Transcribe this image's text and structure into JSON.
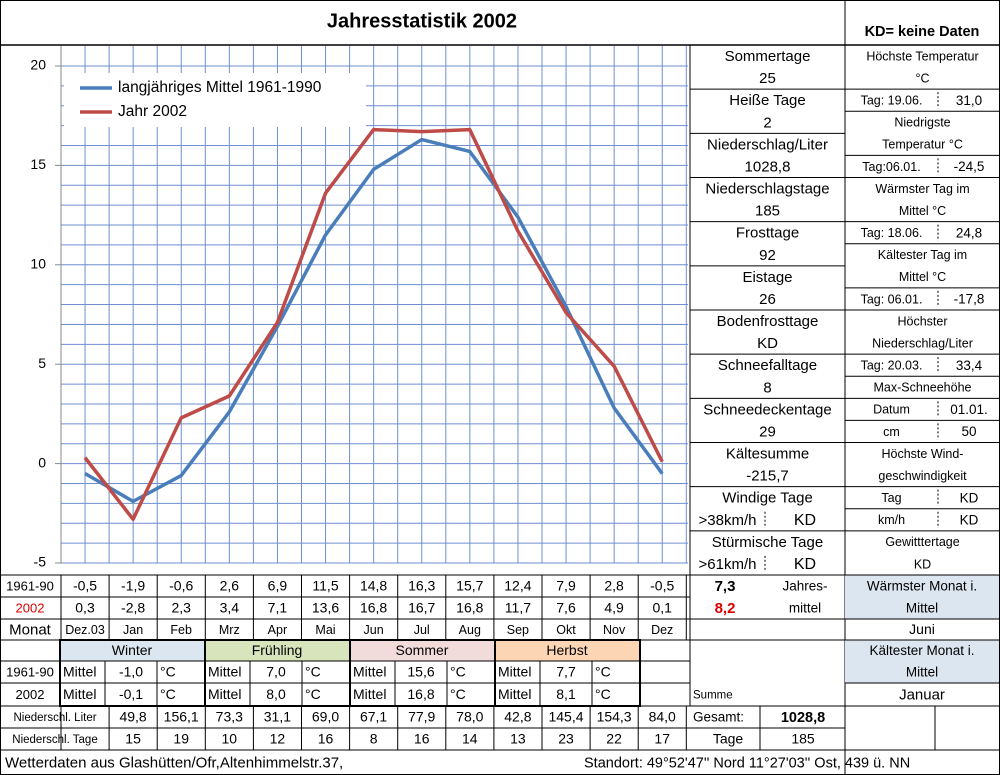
{
  "header": {
    "title": "Jahresstatistik 2002",
    "note": "KD= keine Daten"
  },
  "chart_data": {
    "type": "line",
    "categories": [
      "Dez.03",
      "Jan",
      "Feb",
      "Mrz",
      "Apr",
      "Mai",
      "Jun",
      "Jul",
      "Aug",
      "Sep",
      "Okt",
      "Nov",
      "Dez"
    ],
    "series": [
      {
        "name": "langjähriges Mittel 1961-1990",
        "color": "#4a7ebb",
        "values": [
          -0.5,
          -1.9,
          -0.6,
          2.6,
          6.9,
          11.5,
          14.8,
          16.3,
          15.7,
          12.4,
          7.9,
          2.8,
          -0.5
        ],
        "value_labels": [
          "-0,5",
          "-1,9",
          "-0,6",
          "2,6",
          "6,9",
          "11,5",
          "14,8",
          "16,3",
          "15,7",
          "12,4",
          "7,9",
          "2,8",
          "-0,5"
        ]
      },
      {
        "name": "Jahr 2002",
        "color": "#be4b48",
        "values": [
          0.3,
          -2.8,
          2.3,
          3.4,
          7.1,
          13.6,
          16.8,
          16.7,
          16.8,
          11.7,
          7.6,
          4.9,
          0.1
        ],
        "value_labels": [
          "0,3",
          "-2,8",
          "2,3",
          "3,4",
          "7,1",
          "13,6",
          "16,8",
          "16,7",
          "16,8",
          "11,7",
          "7,6",
          "4,9",
          "0,1"
        ]
      }
    ],
    "ylim": [
      -5,
      20
    ],
    "yticks": [
      -5,
      0,
      5,
      10,
      15,
      20
    ],
    "ygrid": [
      -5,
      -4,
      -3,
      -2,
      -1,
      0,
      1,
      2,
      3,
      4,
      5,
      6,
      7,
      8,
      9,
      10,
      11,
      12,
      13,
      14,
      15,
      16,
      17,
      18,
      19,
      20
    ],
    "grid": true,
    "legend": "upper left"
  },
  "stats": {
    "left": [
      [
        "Sommertage"
      ],
      [
        "25"
      ],
      [
        "Heiße Tage"
      ],
      [
        "2"
      ],
      [
        "Niederschlag/Liter"
      ],
      [
        "1028,8"
      ],
      [
        "Niederschlagstage"
      ],
      [
        "185"
      ],
      [
        "Frosttage"
      ],
      [
        "92"
      ],
      [
        "Eistage"
      ],
      [
        "26"
      ],
      [
        "Bodenfrosttage"
      ],
      [
        "KD"
      ],
      [
        "Schneefalltage"
      ],
      [
        "8"
      ],
      [
        "Schneedeckentage"
      ],
      [
        "29"
      ],
      [
        "Kältesumme"
      ],
      [
        "-215,7"
      ],
      [
        "Windige Tage"
      ],
      [
        ">38km/h",
        "KD"
      ],
      [
        "Stürmische Tage"
      ],
      [
        ">61km/h",
        "KD"
      ]
    ],
    "right": [
      [
        "Höchste Temperatur"
      ],
      [
        "°C"
      ],
      [
        "Tag: 19.06.",
        "31,0"
      ],
      [
        "Niedrigste"
      ],
      [
        "Temperatur °C"
      ],
      [
        "Tag:06.01.",
        "-24,5"
      ],
      [
        "Wärmster Tag im"
      ],
      [
        "Mittel °C"
      ],
      [
        "Tag: 18.06.",
        "24,8"
      ],
      [
        "Kältester Tag im"
      ],
      [
        "Mittel °C"
      ],
      [
        "Tag: 06.01.",
        "-17,8"
      ],
      [
        "Höchster"
      ],
      [
        "Niederschlag/Liter"
      ],
      [
        "Tag: 20.03.",
        "33,4"
      ],
      [
        "Max-Schneehöhe"
      ],
      [
        "Datum",
        "01.01."
      ],
      [
        "cm",
        "50"
      ],
      [
        "Höchste Wind-"
      ],
      [
        "geschwindigkeit"
      ],
      [
        "Tag",
        "KD"
      ],
      [
        "km/h",
        "KD"
      ],
      [
        "Gewitttertage"
      ],
      [
        "KD"
      ]
    ]
  },
  "table": {
    "row_labels": [
      "1961-90",
      "2002"
    ],
    "month_label": "Monat",
    "annual": {
      "label": [
        "Jahres-",
        "mittel"
      ],
      "values": [
        "7,3",
        "8,2"
      ]
    },
    "warmest_month": {
      "label": [
        "Wärmster Monat i.",
        "Mittel"
      ],
      "value": "Juni"
    },
    "coldest_month": {
      "label": [
        "Kältester Monat i.",
        "Mittel"
      ],
      "value": "Januar"
    },
    "seasons": {
      "names": [
        "Winter",
        "Frühling",
        "Sommer",
        "Herbst"
      ],
      "colors": [
        "#dce6f1",
        "#d8e4bc",
        "#f2dcdb",
        "#fcd5b4"
      ],
      "row_labels": [
        "1961-90",
        "2002"
      ],
      "mean_label": "Mittel",
      "unit": "°C",
      "values": [
        [
          "-1,0",
          "7,0",
          "15,6",
          "7,7"
        ],
        [
          "-0,1",
          "8,0",
          "16,8",
          "8,1"
        ]
      ]
    },
    "precipitation": {
      "sum_label": "Summe",
      "liter_label": "Niederschl. Liter",
      "liter": [
        "49,8",
        "156,1",
        "73,3",
        "31,1",
        "69,0",
        "67,1",
        "77,9",
        "78,0",
        "42,8",
        "145,4",
        "154,3",
        "84,0"
      ],
      "total_label": "Gesamt:",
      "total": "1028,8",
      "days_label": "Niederschl. Tage",
      "days": [
        "15",
        "19",
        "10",
        "12",
        "16",
        "8",
        "16",
        "14",
        "13",
        "23",
        "22",
        "17"
      ],
      "days_total_label": "Tage",
      "days_total": "185"
    }
  },
  "footer": {
    "left": "Wetterdaten aus Glashütten/Ofr,Altenhimmelstr.37,",
    "right": "Standort:  49°52'47'' Nord   11°27'03'' Ost, 439 ü. NN"
  }
}
